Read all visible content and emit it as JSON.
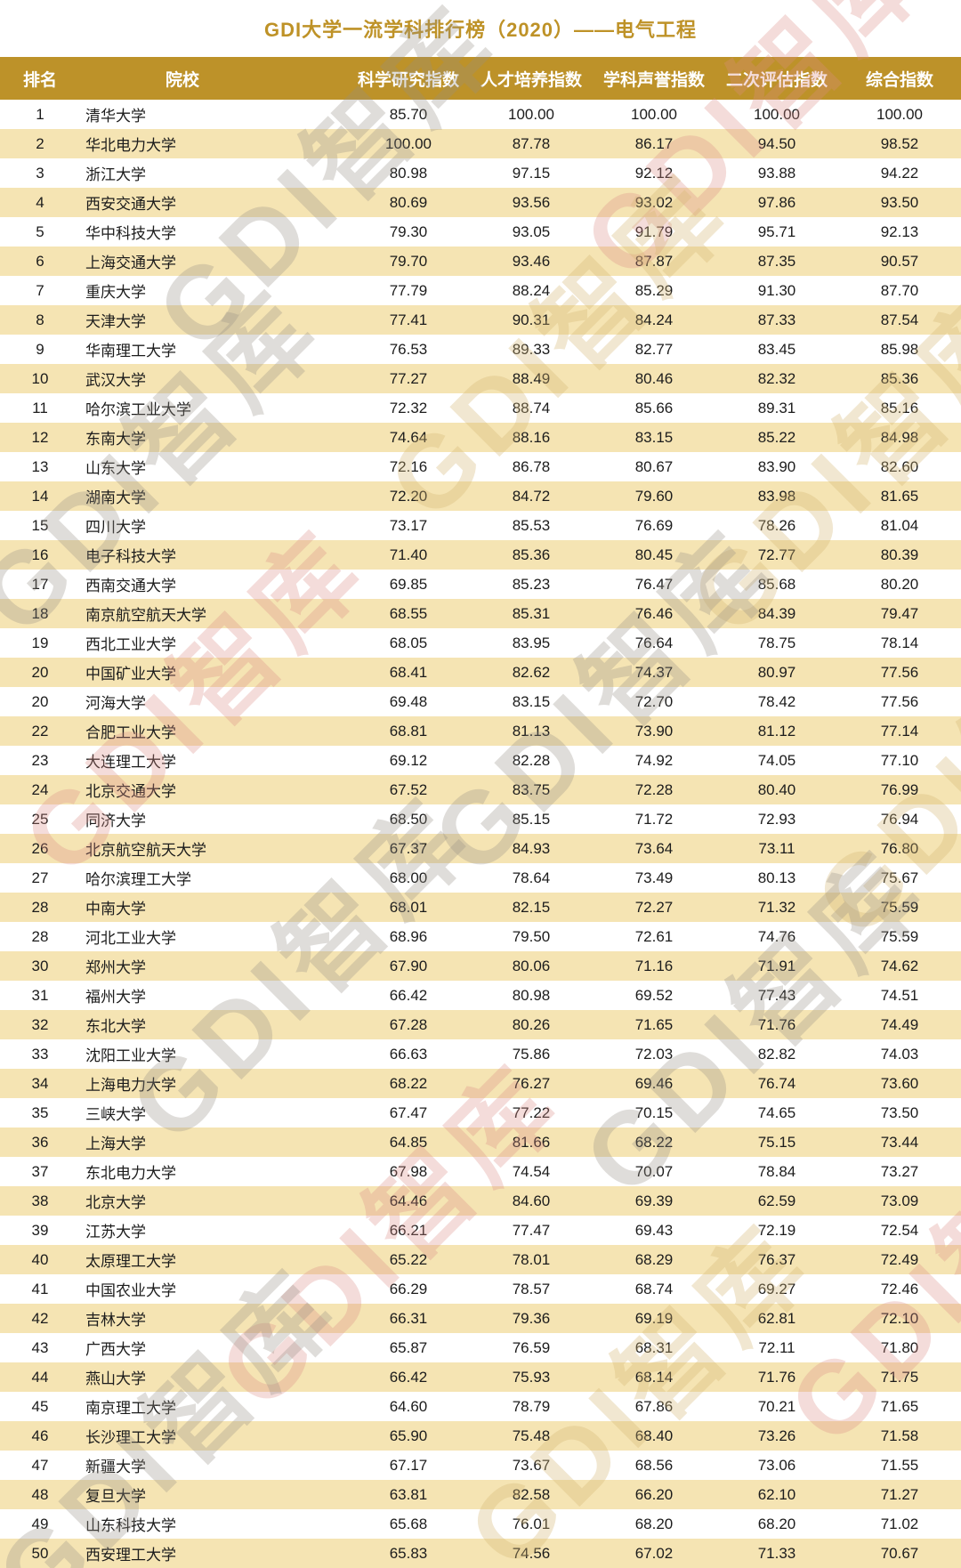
{
  "title": "GDI大学一流学科排行榜（2020）——电气工程",
  "watermark": "GDI智库",
  "colors": {
    "title_text": "#BE9227",
    "header_bg": "#BD9229",
    "header_text": "#FFFFFF",
    "stripe_row_bg": "#F5E4B3",
    "row_text": "#1C1C1C"
  },
  "table": {
    "columns": [
      "排名",
      "院校",
      "科学研究指数",
      "人才培养指数",
      "学科声誉指数",
      "二次评估指数",
      "综合指数"
    ],
    "rows": [
      [
        "1",
        "清华大学",
        "85.70",
        "100.00",
        "100.00",
        "100.00",
        "100.00"
      ],
      [
        "2",
        "华北电力大学",
        "100.00",
        "87.78",
        "86.17",
        "94.50",
        "98.52"
      ],
      [
        "3",
        "浙江大学",
        "80.98",
        "97.15",
        "92.12",
        "93.88",
        "94.22"
      ],
      [
        "4",
        "西安交通大学",
        "80.69",
        "93.56",
        "93.02",
        "97.86",
        "93.50"
      ],
      [
        "5",
        "华中科技大学",
        "79.30",
        "93.05",
        "91.79",
        "95.71",
        "92.13"
      ],
      [
        "6",
        "上海交通大学",
        "79.70",
        "93.46",
        "87.87",
        "87.35",
        "90.57"
      ],
      [
        "7",
        "重庆大学",
        "77.79",
        "88.24",
        "85.29",
        "91.30",
        "87.70"
      ],
      [
        "8",
        "天津大学",
        "77.41",
        "90.31",
        "84.24",
        "87.33",
        "87.54"
      ],
      [
        "9",
        "华南理工大学",
        "76.53",
        "89.33",
        "82.77",
        "83.45",
        "85.98"
      ],
      [
        "10",
        "武汉大学",
        "77.27",
        "88.49",
        "80.46",
        "82.32",
        "85.36"
      ],
      [
        "11",
        "哈尔滨工业大学",
        "72.32",
        "88.74",
        "85.66",
        "89.31",
        "85.16"
      ],
      [
        "12",
        "东南大学",
        "74.64",
        "88.16",
        "83.15",
        "85.22",
        "84.98"
      ],
      [
        "13",
        "山东大学",
        "72.16",
        "86.78",
        "80.67",
        "83.90",
        "82.60"
      ],
      [
        "14",
        "湖南大学",
        "72.20",
        "84.72",
        "79.60",
        "83.98",
        "81.65"
      ],
      [
        "15",
        "四川大学",
        "73.17",
        "85.53",
        "76.69",
        "78.26",
        "81.04"
      ],
      [
        "16",
        "电子科技大学",
        "71.40",
        "85.36",
        "80.45",
        "72.77",
        "80.39"
      ],
      [
        "17",
        "西南交通大学",
        "69.85",
        "85.23",
        "76.47",
        "85.68",
        "80.20"
      ],
      [
        "18",
        "南京航空航天大学",
        "68.55",
        "85.31",
        "76.46",
        "84.39",
        "79.47"
      ],
      [
        "19",
        "西北工业大学",
        "68.05",
        "83.95",
        "76.64",
        "78.75",
        "78.14"
      ],
      [
        "20",
        "中国矿业大学",
        "68.41",
        "82.62",
        "74.37",
        "80.97",
        "77.56"
      ],
      [
        "20",
        "河海大学",
        "69.48",
        "83.15",
        "72.70",
        "78.42",
        "77.56"
      ],
      [
        "22",
        "合肥工业大学",
        "68.81",
        "81.13",
        "73.90",
        "81.12",
        "77.14"
      ],
      [
        "23",
        "大连理工大学",
        "69.12",
        "82.28",
        "74.92",
        "74.05",
        "77.10"
      ],
      [
        "24",
        "北京交通大学",
        "67.52",
        "83.75",
        "72.28",
        "80.40",
        "76.99"
      ],
      [
        "25",
        "同济大学",
        "68.50",
        "85.15",
        "71.72",
        "72.93",
        "76.94"
      ],
      [
        "26",
        "北京航空航天大学",
        "67.37",
        "84.93",
        "73.64",
        "73.11",
        "76.80"
      ],
      [
        "27",
        "哈尔滨理工大学",
        "68.00",
        "78.64",
        "73.49",
        "80.13",
        "75.67"
      ],
      [
        "28",
        "中南大学",
        "68.01",
        "82.15",
        "72.27",
        "71.32",
        "75.59"
      ],
      [
        "28",
        "河北工业大学",
        "68.96",
        "79.50",
        "72.61",
        "74.76",
        "75.59"
      ],
      [
        "30",
        "郑州大学",
        "67.90",
        "80.06",
        "71.16",
        "71.91",
        "74.62"
      ],
      [
        "31",
        "福州大学",
        "66.42",
        "80.98",
        "69.52",
        "77.43",
        "74.51"
      ],
      [
        "32",
        "东北大学",
        "67.28",
        "80.26",
        "71.65",
        "71.76",
        "74.49"
      ],
      [
        "33",
        "沈阳工业大学",
        "66.63",
        "75.86",
        "72.03",
        "82.82",
        "74.03"
      ],
      [
        "34",
        "上海电力大学",
        "68.22",
        "76.27",
        "69.46",
        "76.74",
        "73.60"
      ],
      [
        "35",
        "三峡大学",
        "67.47",
        "77.22",
        "70.15",
        "74.65",
        "73.50"
      ],
      [
        "36",
        "上海大学",
        "64.85",
        "81.66",
        "68.22",
        "75.15",
        "73.44"
      ],
      [
        "37",
        "东北电力大学",
        "67.98",
        "74.54",
        "70.07",
        "78.84",
        "73.27"
      ],
      [
        "38",
        "北京大学",
        "64.46",
        "84.60",
        "69.39",
        "62.59",
        "73.09"
      ],
      [
        "39",
        "江苏大学",
        "66.21",
        "77.47",
        "69.43",
        "72.19",
        "72.54"
      ],
      [
        "40",
        "太原理工大学",
        "65.22",
        "78.01",
        "68.29",
        "76.37",
        "72.49"
      ],
      [
        "41",
        "中国农业大学",
        "66.29",
        "78.57",
        "68.74",
        "69.27",
        "72.46"
      ],
      [
        "42",
        "吉林大学",
        "66.31",
        "79.36",
        "69.19",
        "62.81",
        "72.10"
      ],
      [
        "43",
        "广西大学",
        "65.87",
        "76.59",
        "68.31",
        "72.11",
        "71.80"
      ],
      [
        "44",
        "燕山大学",
        "66.42",
        "75.93",
        "68.14",
        "71.76",
        "71.75"
      ],
      [
        "45",
        "南京理工大学",
        "64.60",
        "78.79",
        "67.86",
        "70.21",
        "71.65"
      ],
      [
        "46",
        "长沙理工大学",
        "65.90",
        "75.48",
        "68.40",
        "73.26",
        "71.58"
      ],
      [
        "47",
        "新疆大学",
        "67.17",
        "73.67",
        "68.56",
        "73.06",
        "71.55"
      ],
      [
        "48",
        "复旦大学",
        "63.81",
        "82.58",
        "66.20",
        "62.10",
        "71.27"
      ],
      [
        "49",
        "山东科技大学",
        "65.68",
        "76.01",
        "68.20",
        "68.20",
        "71.02"
      ],
      [
        "50",
        "西安理工大学",
        "65.83",
        "74.56",
        "67.02",
        "71.33",
        "70.67"
      ]
    ]
  }
}
